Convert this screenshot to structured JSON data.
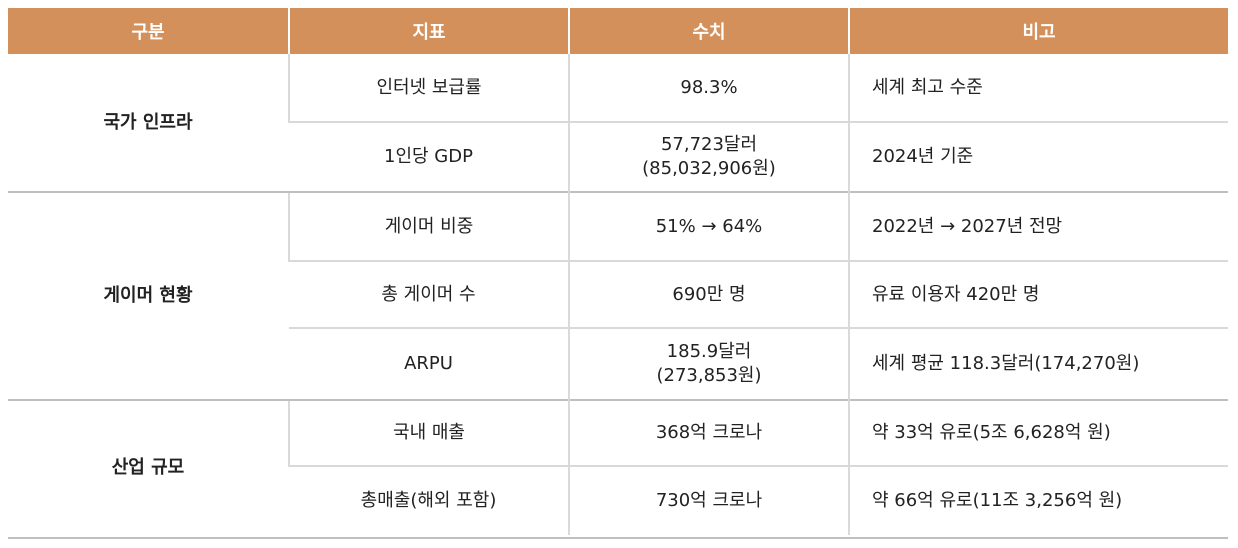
{
  "headers": [
    "구분",
    "지표",
    "수치",
    "비고"
  ],
  "groups": [
    {
      "category": "국가 인프라",
      "rows": [
        {
          "indicator": "인터넷 보급률",
          "value": [
            "98.3%"
          ],
          "note": "세계 최고 수준"
        },
        {
          "indicator": "1인당 GDP",
          "value": [
            "57,723달러",
            "(85,032,906원)"
          ],
          "note": "2024년 기준"
        }
      ]
    },
    {
      "category": "게이머 현황",
      "rows": [
        {
          "indicator": "게이머 비중",
          "value": [
            "51% → 64%"
          ],
          "note": "2022년 → 2027년 전망"
        },
        {
          "indicator": "총 게이머 수",
          "value": [
            "690만 명"
          ],
          "note": "유료 이용자 420만 명"
        },
        {
          "indicator": "ARPU",
          "value": [
            "185.9달러",
            "(273,853원)"
          ],
          "note": "세계 평균 118.3달러(174,270원)"
        }
      ]
    },
    {
      "category": "산업 규모",
      "rows": [
        {
          "indicator": "국내 매출",
          "value": [
            "368억 크로나"
          ],
          "note": "약 33억 유로(5조 6,628억 원)"
        },
        {
          "indicator": "총매출(해외 포함)",
          "value": [
            "730억 크로나"
          ],
          "note": "약 66억 유로(11조 3,256억 원)"
        }
      ]
    }
  ],
  "colors": {
    "header_bg": "#d4905a",
    "header_text": "#ffffff",
    "grid": "#d9d9d9"
  }
}
